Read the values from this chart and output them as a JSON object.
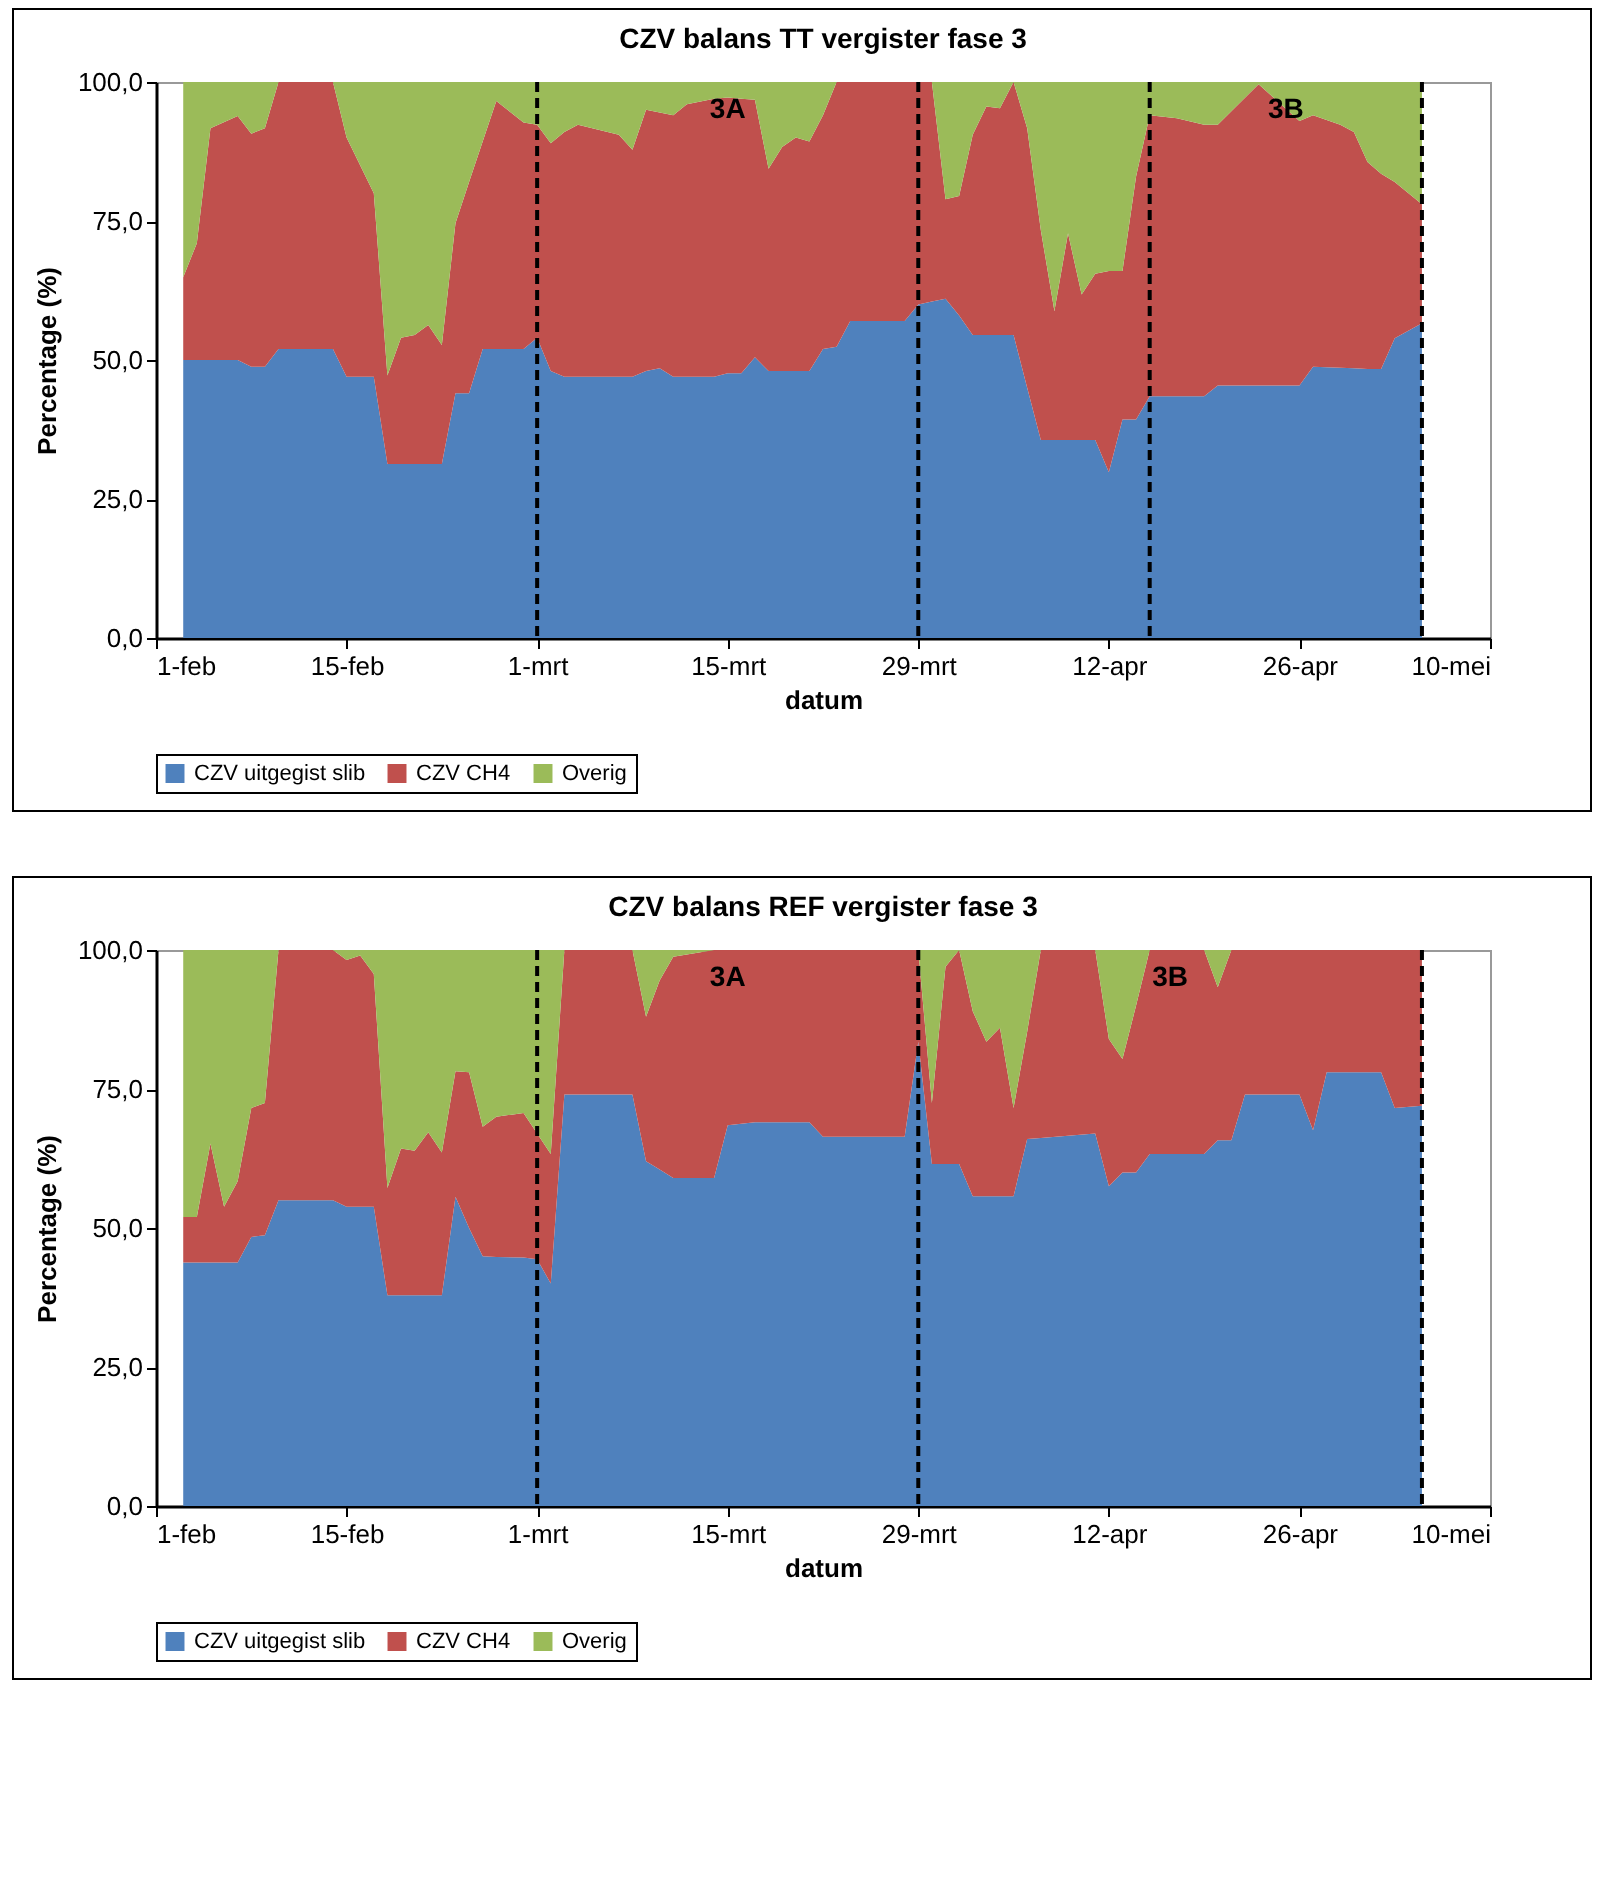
{
  "chart_data": [
    {
      "type": "area",
      "stacked": true,
      "title": "CZV balans TT vergister fase 3",
      "xlabel": "datum",
      "ylabel": "Percentage (%)",
      "legend": "bottom",
      "x": [
        "--02-03",
        "--02-04",
        "--02-05",
        "--02-07",
        "--02-08",
        "--02-09",
        "--02-10",
        "--02-14",
        "--02-15",
        "--02-17",
        "--02-18",
        "--02-19",
        "--02-20",
        "--02-21",
        "--02-22",
        "--02-23",
        "--02-24",
        "--02-25",
        "--02-26",
        "--02-28",
        "--03-01",
        "--03-02",
        "--03-03",
        "--03-04",
        "--03-07",
        "--03-08",
        "--03-09",
        "--03-10",
        "--03-11",
        "--03-12",
        "--03-14",
        "--03-15",
        "--03-16",
        "--03-17",
        "--03-18",
        "--03-19",
        "--03-20",
        "--03-21",
        "--03-22",
        "--03-23",
        "--03-24",
        "--03-28",
        "--03-29",
        "--03-30",
        "--03-31",
        "--04-01",
        "--04-02",
        "--04-03",
        "--04-04",
        "--04-05",
        "--04-06",
        "--04-07",
        "--04-08",
        "--04-09",
        "--04-10",
        "--04-11",
        "--04-12",
        "--04-13",
        "--04-14",
        "--04-15",
        "--04-17",
        "--04-19",
        "--04-20",
        "--04-23",
        "--04-26",
        "--04-27",
        "--04-29",
        "--04-30",
        "--05-01",
        "--05-02",
        "--05-03",
        "--05-05"
      ],
      "series": [
        {
          "name": "CZV uitgegist slib",
          "color": "#4f81bd",
          "values": [
            50,
            50,
            50,
            50,
            48.8,
            48.8,
            52,
            52,
            47,
            47,
            31.3,
            31.3,
            31.3,
            31.3,
            31.3,
            44,
            44,
            52,
            52,
            52,
            54,
            48,
            47,
            47,
            47,
            47,
            48,
            48.5,
            47,
            47,
            47,
            47.6,
            47.6,
            50.5,
            48,
            48,
            48,
            48,
            52,
            52.4,
            57,
            57,
            60,
            60.5,
            61,
            58,
            54.5,
            54.5,
            54.5,
            54.5,
            45,
            35.6,
            35.6,
            35.6,
            35.6,
            35.6,
            29.8,
            39.3,
            39.3,
            43.5,
            43.5,
            43.5,
            45.4,
            45.4,
            45.4,
            48.8,
            48.6,
            48.5,
            48.4,
            48.4,
            53.9,
            56.6
          ]
        },
        {
          "name": "CZV CH4",
          "color": "#c0504d",
          "values": [
            14.9,
            21,
            41.7,
            43.9,
            41.9,
            42.9,
            48,
            48,
            43,
            33,
            15.9,
            22.7,
            23.2,
            25,
            21.4,
            30.6,
            38,
            37.3,
            44.6,
            40.7,
            38.3,
            41,
            44,
            45.3,
            43.5,
            40.8,
            47,
            46,
            47,
            49,
            50,
            49.6,
            49.4,
            46.3,
            36.4,
            40.3,
            42,
            41.3,
            42,
            47.6,
            43,
            43,
            40,
            39.5,
            17.9,
            21.5,
            36,
            41.1,
            40.8,
            45.5,
            46.7,
            37.8,
            23.2,
            37.2,
            26.2,
            29.9,
            36.2,
            26.7,
            43.7,
            50.5,
            50,
            48.8,
            46.9,
            54.2,
            47.6,
            45.2,
            43.7,
            42.5,
            37.2,
            35.1,
            28.1,
            21.4
          ]
        },
        {
          "name": "Overig",
          "color": "#9bbb59",
          "values": [
            35.1,
            29,
            8.3,
            6.1,
            9.3,
            8.3,
            0,
            0,
            10,
            20,
            52.8,
            46,
            45.5,
            43.7,
            47.3,
            25.4,
            18,
            10.7,
            3.4,
            7.3,
            7.7,
            11,
            9,
            7.7,
            9.5,
            12.2,
            5,
            5.5,
            6,
            4,
            3,
            2.8,
            3,
            3.2,
            15.6,
            11.7,
            10,
            10.7,
            6,
            0,
            0,
            0,
            0,
            0,
            21.1,
            20.5,
            9.5,
            4.4,
            4.7,
            0,
            8.3,
            26.6,
            41.2,
            27.2,
            38.2,
            34.5,
            34,
            34,
            17,
            6,
            6.5,
            7.7,
            7.7,
            0.4,
            7,
            6,
            7.7,
            9,
            14.4,
            16.5,
            18,
            22
          ]
        }
      ],
      "xlim": [
        "--02-01",
        "--05-10"
      ],
      "xticks": [
        {
          "value": "--02-01",
          "label": "1-feb"
        },
        {
          "value": "--02-15",
          "label": "15-feb"
        },
        {
          "value": "--03-01",
          "label": "1-mrt"
        },
        {
          "value": "--03-15",
          "label": "15-mrt"
        },
        {
          "value": "--03-29",
          "label": "29-mrt"
        },
        {
          "value": "--04-12",
          "label": "12-apr"
        },
        {
          "value": "--04-26",
          "label": "26-apr"
        },
        {
          "value": "--05-10",
          "label": "10-mei"
        }
      ],
      "ylim": [
        0,
        100
      ],
      "yticks": [
        {
          "value": 0,
          "label": "0,0"
        },
        {
          "value": 25,
          "label": "25,0"
        },
        {
          "value": 50,
          "label": "50,0"
        },
        {
          "value": 75,
          "label": "75,0"
        },
        {
          "value": 100,
          "label": "100,0"
        }
      ],
      "ref_lines": [
        {
          "axis": "x",
          "value": "--03-01",
          "color": "#000000",
          "line_style": "dashed"
        },
        {
          "axis": "x",
          "value": "--03-29",
          "color": "#000000",
          "line_style": "dashed"
        },
        {
          "axis": "x",
          "value": "--04-15",
          "color": "#000000",
          "line_style": "dashed"
        },
        {
          "axis": "x",
          "value": "--05-05",
          "color": "#000000",
          "line_style": "dashed"
        }
      ],
      "annotations": [
        "3A",
        "3B"
      ]
    },
    {
      "type": "area",
      "stacked": true,
      "title": "CZV balans REF vergister fase 3",
      "xlabel": "datum",
      "ylabel": "Percentage (%)",
      "legend": "bottom",
      "x": [
        "--02-03",
        "--02-04",
        "--02-05",
        "--02-06",
        "--02-07",
        "--02-08",
        "--02-09",
        "--02-10",
        "--02-14",
        "--02-15",
        "--02-16",
        "--02-17",
        "--02-18",
        "--02-19",
        "--02-20",
        "--02-21",
        "--02-22",
        "--02-23",
        "--02-24",
        "--02-25",
        "--02-26",
        "--02-28",
        "--03-01",
        "--03-02",
        "--03-03",
        "--03-08",
        "--03-09",
        "--03-10",
        "--03-11",
        "--03-14",
        "--03-15",
        "--03-17",
        "--03-21",
        "--03-22",
        "--03-28",
        "--03-29",
        "--03-30",
        "--03-31",
        "--04-01",
        "--04-02",
        "--04-03",
        "--04-04",
        "--04-05",
        "--04-06",
        "--04-07",
        "--04-11",
        "--04-12",
        "--04-13",
        "--04-14",
        "--04-15",
        "--04-19",
        "--04-20",
        "--04-21",
        "--04-22",
        "--04-26",
        "--04-27",
        "--04-28",
        "--05-02",
        "--05-03",
        "--05-05"
      ],
      "series": [
        {
          "name": "CZV uitgegist slib",
          "color": "#4f81bd",
          "values": [
            43.8,
            43.8,
            43.8,
            43.8,
            43.8,
            48.4,
            48.7,
            55,
            55,
            53.8,
            53.8,
            53.8,
            37.9,
            37.9,
            37.9,
            37.9,
            37.9,
            55.6,
            50,
            44.9,
            44.8,
            44.7,
            44.4,
            40,
            74,
            74,
            62,
            60.5,
            59,
            59,
            68.5,
            69,
            69,
            66.4,
            66.4,
            83.5,
            61.5,
            61.5,
            61.5,
            55.7,
            55.7,
            55.7,
            55.7,
            66,
            66.2,
            67,
            57.5,
            60,
            60,
            63.3,
            63.3,
            65.8,
            65.8,
            74,
            74,
            67.6,
            78,
            78,
            71.6,
            72
          ]
        },
        {
          "name": "CZV CH4",
          "color": "#c0504d",
          "values": [
            8.2,
            8.2,
            21.4,
            10,
            14.6,
            23.2,
            23.8,
            45,
            45,
            44.4,
            45.2,
            41.9,
            19.3,
            26.4,
            26,
            29.3,
            25.7,
            22.6,
            28,
            23.3,
            25.2,
            26,
            22.6,
            23.3,
            26,
            26,
            26,
            34,
            39.8,
            41,
            31.5,
            31,
            31,
            33.6,
            33.6,
            16.5,
            11,
            35.5,
            38.5,
            33.3,
            27.8,
            30.3,
            15.9,
            19.3,
            33.8,
            33,
            26.5,
            20.4,
            30,
            36.7,
            36.7,
            27.5,
            34.2,
            26,
            26,
            32.4,
            22,
            22,
            28.4,
            28
          ]
        },
        {
          "name": "Overig",
          "color": "#9bbb59",
          "values": [
            48,
            48,
            34.8,
            46.2,
            41.6,
            28.4,
            27.5,
            0,
            0,
            1.8,
            1,
            4.3,
            42.8,
            35.7,
            36.1,
            32.8,
            36.4,
            21.8,
            22,
            31.8,
            30,
            29.3,
            33,
            36.7,
            0,
            0,
            12,
            5.5,
            1.2,
            0,
            0,
            0,
            0,
            0,
            0,
            0,
            27.5,
            3,
            0,
            11,
            16.5,
            14,
            28.4,
            14.7,
            0,
            0,
            16,
            19.6,
            10,
            0,
            0,
            6.7,
            0,
            0,
            0,
            0,
            0,
            0,
            0,
            0
          ]
        }
      ],
      "xlim": [
        "--02-01",
        "--05-10"
      ],
      "xticks": [
        {
          "value": "--02-01",
          "label": "1-feb"
        },
        {
          "value": "--02-15",
          "label": "15-feb"
        },
        {
          "value": "--03-01",
          "label": "1-mrt"
        },
        {
          "value": "--03-15",
          "label": "15-mrt"
        },
        {
          "value": "--03-29",
          "label": "29-mrt"
        },
        {
          "value": "--04-12",
          "label": "12-apr"
        },
        {
          "value": "--04-26",
          "label": "26-apr"
        },
        {
          "value": "--05-10",
          "label": "10-mei"
        }
      ],
      "ylim": [
        0,
        100
      ],
      "yticks": [
        {
          "value": 0,
          "label": "0,0"
        },
        {
          "value": 25,
          "label": "25,0"
        },
        {
          "value": 50,
          "label": "50,0"
        },
        {
          "value": 75,
          "label": "75,0"
        },
        {
          "value": 100,
          "label": "100,0"
        }
      ],
      "ref_lines": [
        {
          "axis": "x",
          "value": "--03-01",
          "color": "#000000",
          "line_style": "dashed"
        },
        {
          "axis": "x",
          "value": "--03-29",
          "color": "#000000",
          "line_style": "dashed"
        },
        {
          "axis": "x",
          "value": "--05-05",
          "color": "#000000",
          "line_style": "dashed"
        }
      ],
      "annotations": [
        "3A",
        "3B"
      ]
    }
  ]
}
